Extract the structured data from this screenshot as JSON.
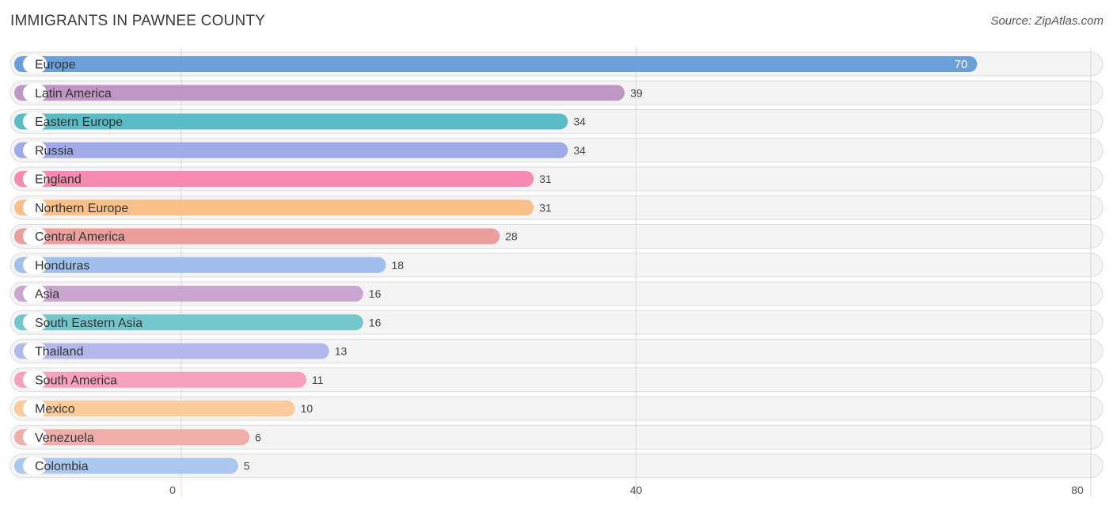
{
  "header": {
    "title": "IMMIGRANTS IN PAWNEE COUNTY",
    "source": "Source: ZipAtlas.com"
  },
  "chart_data": {
    "type": "bar",
    "orientation": "horizontal",
    "title": "IMMIGRANTS IN PAWNEE COUNTY",
    "xlim": [
      0,
      80
    ],
    "ticks": [
      0,
      40,
      80
    ],
    "grid": true,
    "categories": [
      "Europe",
      "Latin America",
      "Eastern Europe",
      "Russia",
      "England",
      "Northern Europe",
      "Central America",
      "Honduras",
      "Asia",
      "South Eastern Asia",
      "Thailand",
      "South America",
      "Mexico",
      "Venezuela",
      "Colombia"
    ],
    "values": [
      70,
      39,
      34,
      34,
      31,
      31,
      28,
      18,
      16,
      16,
      13,
      11,
      10,
      6,
      5
    ],
    "colors": [
      "#6a9fdc",
      "#bf96c4",
      "#5bbcc6",
      "#a0aae8",
      "#f58bb0",
      "#f9c089",
      "#eb9e9b",
      "#9ec0ea",
      "#c9a6cd",
      "#72c7cc",
      "#b2b8ec",
      "#f7a1be",
      "#fbcb9b",
      "#f0aeaa",
      "#a9c7ef"
    ]
  }
}
